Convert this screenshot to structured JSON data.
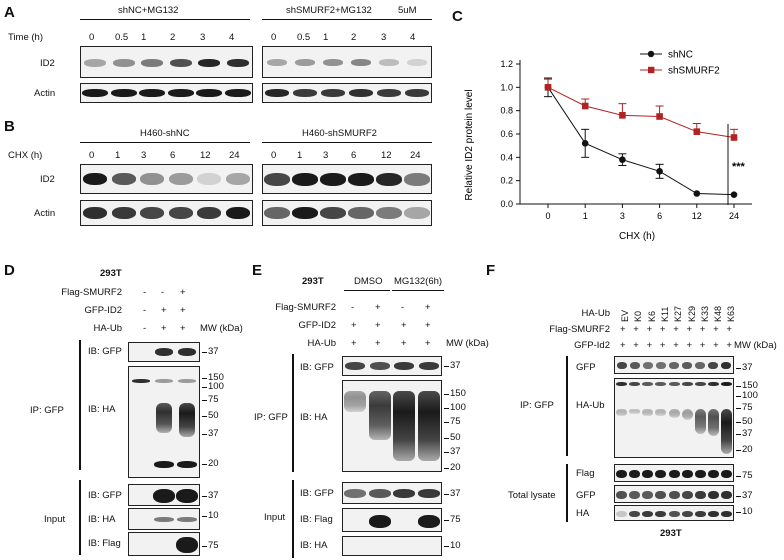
{
  "panels": {
    "A": "A",
    "B": "B",
    "C": "C",
    "D": "D",
    "E": "E",
    "F": "F"
  },
  "A": {
    "group1": "shNC+MG132",
    "group2": "shSMURF2+MG132",
    "conc": "5uM",
    "time_label": "Time (h)",
    "times": [
      "0",
      "0.5",
      "1",
      "2",
      "3",
      "4"
    ],
    "rows": [
      "ID2",
      "Actin"
    ]
  },
  "B": {
    "group1": "H460-shNC",
    "group2": "H460-shSMURF2",
    "chx_label": "CHX (h)",
    "times": [
      "0",
      "1",
      "3",
      "6",
      "12",
      "24"
    ],
    "rows": [
      "ID2",
      "Actin"
    ]
  },
  "chart_data": {
    "type": "line",
    "title": "",
    "xlabel": "CHX (h)",
    "ylabel": "Relative ID2 protein level",
    "categories": [
      "0",
      "1",
      "3",
      "6",
      "12",
      "24"
    ],
    "ylim": [
      0.0,
      1.2
    ],
    "yticks": [
      "0.0",
      "0.2",
      "0.4",
      "0.6",
      "0.8",
      "1.0",
      "1.2"
    ],
    "series": [
      {
        "name": "shNC",
        "color": "#111111",
        "marker": "circle",
        "values": [
          1.0,
          0.52,
          0.38,
          0.28,
          0.09,
          0.08
        ],
        "errors": [
          0.08,
          0.12,
          0.05,
          0.06,
          0.0,
          0.0
        ]
      },
      {
        "name": "shSMURF2",
        "color": "#b22222",
        "marker": "square",
        "values": [
          1.0,
          0.84,
          0.76,
          0.75,
          0.62,
          0.57
        ],
        "errors": [
          0.07,
          0.06,
          0.1,
          0.09,
          0.07,
          0.07
        ]
      }
    ],
    "significance": "***",
    "legend": "top-right",
    "grid": false
  },
  "D": {
    "cell": "293T",
    "cond_labels": [
      "Flag-SMURF2",
      "GFP-ID2",
      "HA-Ub"
    ],
    "conds": [
      [
        "-",
        "-",
        "+"
      ],
      [
        "-",
        "+",
        "+"
      ],
      [
        "-",
        "+",
        "+"
      ]
    ],
    "mw_label": "MW (kDa)",
    "ip_label": "IP: GFP",
    "input_label": "Input",
    "ib": [
      "IB: GFP",
      "IB: HA",
      "IB: GFP",
      "IB: HA",
      "IB: Flag"
    ],
    "mw": {
      "gfp": "37",
      "ha": [
        "150",
        "100",
        "75",
        "50",
        "37",
        "20"
      ],
      "in_gfp": "37",
      "in_ha": "10",
      "in_flag": "75"
    }
  },
  "E": {
    "cell": "293T",
    "groups": [
      "DMSO",
      "MG132(6h)"
    ],
    "cond_labels": [
      "Flag-SMURF2",
      "GFP-ID2",
      "HA-Ub"
    ],
    "conds": [
      [
        "-",
        "+",
        "-",
        "+"
      ],
      [
        "+",
        "+",
        "+",
        "+"
      ],
      [
        "+",
        "+",
        "+",
        "+"
      ]
    ],
    "mw_label": "MW (kDa)",
    "ip_label": "IP: GFP",
    "input_label": "Input",
    "ib": [
      "IB: GFP",
      "IB: HA",
      "IB: GFP",
      "IB: Flag",
      "IB: HA"
    ],
    "mw": {
      "gfp": "37",
      "ha": [
        "150",
        "100",
        "75",
        "50",
        "37",
        "20"
      ],
      "in_gfp": "37",
      "in_flag": "75",
      "in_ha": "10"
    }
  },
  "F": {
    "cell": "293T",
    "ub_label": "HA-Ub",
    "lanes": [
      "EV",
      "K0",
      "K6",
      "K11",
      "K27",
      "K29",
      "K33",
      "K48",
      "K63"
    ],
    "cond_labels": [
      "Flag-SMURF2",
      "GFP-Id2"
    ],
    "plus": "+",
    "mw_label": "MW (kDa)",
    "ip_label": "IP: GFP",
    "lysate_label": "Total lysate",
    "ib": [
      "GFP",
      "HA-Ub",
      "Flag",
      "GFP",
      "HA"
    ],
    "mw": {
      "gfp": "37",
      "ha": [
        "150",
        "100",
        "75",
        "50",
        "37",
        "20"
      ],
      "flag": "75",
      "lgfp": "37",
      "lha": "10"
    }
  }
}
